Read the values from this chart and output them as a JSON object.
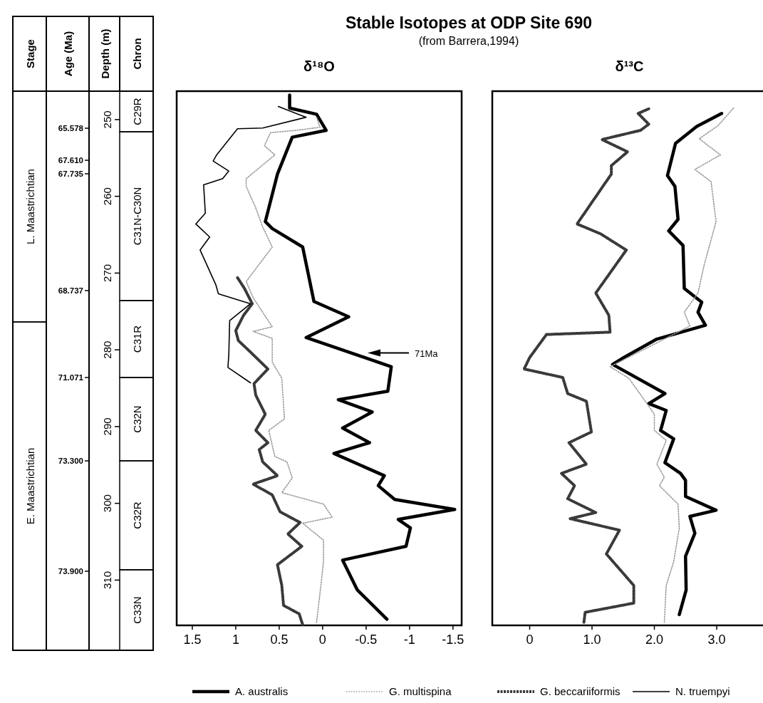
{
  "chart_data": [
    {
      "type": "other",
      "annotations": [
        "Stage",
        "Age (Ma)",
        "Chron",
        "L. Maastrichtian",
        "E. Maastrichtian",
        "65.578",
        "67.610",
        "67.735",
        "68.737",
        "71.071",
        "73.300",
        "73.900",
        "C29R",
        "C31N-C30N",
        "C31R",
        "C32N",
        "C32R",
        "C33N"
      ]
    },
    {
      "type": "line",
      "title": "Stable Isotopes at ODP Site 690",
      "subtitle": "(from Barrera,1994)",
      "xlabel": "δ¹⁸O",
      "ylabel": "Depth (m)",
      "xlim": [
        1.68,
        -1.6
      ],
      "xticks": [
        1.5,
        1,
        0.5,
        0,
        -0.5,
        -1,
        -1.5
      ],
      "ylim": [
        315.9,
        246.3
      ],
      "yticks": [
        250,
        260,
        270,
        280,
        290,
        300,
        310
      ],
      "legend": "bottom",
      "annotations": [
        "71Ma"
      ],
      "series": [
        {
          "name": "A. australis",
          "color": "#000000",
          "line_style": "solid",
          "values": [
            246.8,
            248.5,
            249.3,
            251.4,
            252.3,
            257.1,
            263.3,
            264.2,
            266.6,
            273.7,
            275.7,
            278.4,
            282.2,
            285.4,
            286.5,
            288.1,
            290.2,
            292.1,
            293.5,
            296.4,
            297.7,
            299.5,
            300.8,
            302.1,
            303.2,
            305.6,
            307.4,
            311.3,
            315.1
          ],
          "x": [
            0.38,
            0.38,
            0.07,
            -0.04,
            0.35,
            0.52,
            0.66,
            0.58,
            0.23,
            0.1,
            -0.3,
            0.19,
            -0.79,
            -0.75,
            -0.18,
            -0.57,
            -0.23,
            -0.54,
            -0.13,
            -0.71,
            -0.64,
            -0.83,
            -1.52,
            -0.87,
            -1.01,
            -0.96,
            -0.23,
            -0.4,
            -0.74
          ]
        },
        {
          "name": "G. multispina",
          "color": "#9a9a9a",
          "line_style": "dotted",
          "values": [
            249.7,
            251.0,
            251.4,
            251.7,
            253.4,
            254.6,
            257.7,
            258.7,
            261.5,
            264.0,
            266.6,
            271.1,
            273.2,
            277.0,
            277.6,
            278.5,
            281.6,
            283.7,
            289.0,
            290.5,
            293.9,
            294.6,
            296.7,
            298.6,
            300.1,
            301.8,
            302.6,
            304.8,
            307.6,
            310.7,
            315.5
          ],
          "x": [
            0.07,
            0.03,
            0.3,
            0.6,
            0.67,
            0.55,
            0.88,
            0.88,
            0.77,
            0.69,
            0.58,
            0.88,
            0.8,
            0.58,
            0.8,
            0.58,
            0.58,
            0.47,
            0.44,
            0.62,
            0.55,
            0.41,
            0.35,
            0.47,
            -0.01,
            -0.11,
            0.23,
            -0.01,
            -0.01,
            0.02,
            0.07
          ]
        },
        {
          "name": "G. beccariiformis",
          "color": "#3a3a3a",
          "line_style": "dashed",
          "values": [
            270.6,
            272.0,
            274.0,
            275.5,
            277.5,
            278.8,
            280.3,
            282.5,
            284.4,
            285.9,
            288.4,
            290.5,
            292.1,
            293.0,
            294.6,
            296.4,
            297.5,
            298.9,
            301.1,
            302.5,
            304.0,
            305.6,
            308.0,
            310.7,
            313.3,
            314.4,
            315.8
          ],
          "x": [
            0.98,
            0.9,
            0.81,
            0.91,
            1.0,
            0.97,
            0.83,
            0.63,
            0.79,
            0.77,
            0.66,
            0.77,
            0.63,
            0.73,
            0.69,
            0.52,
            0.8,
            0.58,
            0.49,
            0.26,
            0.4,
            0.24,
            0.52,
            0.47,
            0.45,
            0.27,
            0.23
          ]
        },
        {
          "name": "N. truempyi",
          "color": "#000000",
          "line_style": "solid",
          "values": [
            248.3,
            249.7,
            251.1,
            251.2,
            254.6,
            255.4,
            256.7,
            257.7,
            258.5,
            262.2,
            263.6,
            265.3,
            267.0,
            271.5,
            272.7,
            274.0,
            276.2,
            280.6,
            282.3,
            284.3
          ],
          "x": [
            0.51,
            0.19,
            0.69,
            0.98,
            1.22,
            1.26,
            1.08,
            1.15,
            1.37,
            1.35,
            1.46,
            1.3,
            1.41,
            1.23,
            1.2,
            0.83,
            1.07,
            1.08,
            1.09,
            0.83
          ]
        }
      ]
    },
    {
      "type": "line",
      "xlabel": "δ¹³C",
      "xlim": [
        -0.6,
        3.8
      ],
      "xticks": [
        0,
        {
          "value": 1,
          "label": "1.0"
        },
        {
          "value": 2,
          "label": "2.0"
        },
        {
          "value": 3,
          "label": "3.0"
        }
      ],
      "ylim": [
        315.9,
        246.3
      ],
      "tick_labels": "x",
      "series": [
        {
          "color": "#000000",
          "line_style": "solid",
          "values": [
            249.2,
            250.9,
            253.1,
            257.3,
            258.7,
            263.0,
            264.5,
            266.4,
            272.0,
            273.8,
            275.1,
            276.8,
            278.6,
            281.0,
            281.9,
            285.7,
            287.0,
            287.9,
            290.5,
            291.6,
            294.7,
            296.1,
            297.0,
            299.1,
            300.9,
            301.7,
            303.9,
            306.9,
            311.3,
            314.5
          ],
          "x": [
            3.08,
            2.68,
            2.34,
            2.21,
            2.33,
            2.38,
            2.23,
            2.46,
            2.48,
            2.76,
            2.7,
            2.82,
            2.04,
            1.51,
            1.33,
            2.17,
            1.91,
            2.19,
            2.1,
            2.31,
            2.17,
            2.42,
            2.5,
            2.5,
            2.99,
            2.57,
            2.65,
            2.5,
            2.51,
            2.4
          ]
        },
        {
          "color": "#9a9a9a",
          "line_style": "dotted",
          "values": [
            248.5,
            249.7,
            250.8,
            252.5,
            254.6,
            256.5,
            258.1,
            263.3,
            268.9,
            272.6,
            275.1,
            276.9,
            282.2,
            283.7,
            287.1,
            288.4,
            290.5,
            291.8,
            294.9,
            296.6,
            297.7,
            300.1,
            303.2,
            307.6,
            310.7,
            315.5
          ],
          "x": [
            3.27,
            3.14,
            3.02,
            2.72,
            3.06,
            2.65,
            2.91,
            2.99,
            2.8,
            2.7,
            2.48,
            2.57,
            1.29,
            1.59,
            1.89,
            2.0,
            2.0,
            2.19,
            2.04,
            2.16,
            2.08,
            2.38,
            2.4,
            2.31,
            2.19,
            2.16
          ]
        },
        {
          "color": "#3a3a3a",
          "line_style": "dashed",
          "values": [
            248.6,
            249.2,
            250.6,
            251.4,
            252.6,
            254.2,
            256.0,
            257.1,
            263.6,
            264.9,
            267.0,
            272.6,
            275.5,
            277.7,
            278.0,
            281.0,
            282.5,
            283.6,
            285.7,
            286.7,
            290.7,
            292.1,
            294.9,
            296.1,
            297.7,
            299.4,
            301.2,
            302.0,
            303.5,
            306.6,
            310.7,
            313.0,
            314.2,
            315.5
          ],
          "x": [
            1.91,
            1.74,
            1.91,
            1.78,
            1.16,
            1.57,
            1.31,
            1.31,
            0.76,
            1.14,
            1.55,
            1.06,
            1.27,
            1.29,
            0.27,
            0.0,
            -0.09,
            0.53,
            0.61,
            0.91,
            0.99,
            0.63,
            0.91,
            0.51,
            0.72,
            0.61,
            1.06,
            0.65,
            1.44,
            1.23,
            1.67,
            1.67,
            0.89,
            0.87
          ]
        }
      ]
    }
  ]
}
